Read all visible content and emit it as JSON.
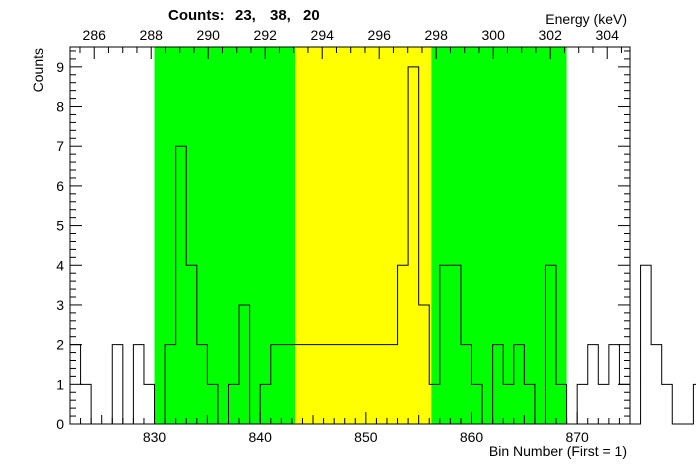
{
  "chart_data": {
    "type": "histogram",
    "title": "",
    "counts_header": {
      "label": "Counts:",
      "values": [
        "23,",
        "38,",
        "20"
      ]
    },
    "ylabel": "Counts",
    "xlabel_bottom": "Bin Number (First = 1)",
    "xlabel_top": "Energy (keV)",
    "xlim": [
      822,
      875
    ],
    "ylim": [
      0,
      9.5
    ],
    "y_ticks": [
      0,
      1,
      2,
      3,
      4,
      5,
      6,
      7,
      8,
      9
    ],
    "x_ticks_bottom": [
      830,
      840,
      850,
      860,
      870
    ],
    "x_ticks_top": [
      286,
      288,
      290,
      292,
      294,
      296,
      298,
      300,
      302,
      304
    ],
    "energy_axis": {
      "bin_a": 822,
      "energy_a": 285.15,
      "bin_b": 875,
      "energy_b": 304.8
    },
    "bin_start": 822,
    "bin_width": 1,
    "counts": [
      2,
      1,
      0,
      0,
      2,
      0,
      2,
      1,
      0,
      2,
      7,
      4,
      2,
      1,
      0,
      1,
      3,
      0,
      1,
      2,
      2,
      2,
      2,
      2,
      2,
      2,
      2,
      2,
      2,
      2,
      2,
      4,
      9,
      3,
      1,
      4,
      4,
      2,
      1,
      0,
      2,
      1,
      2,
      1,
      0,
      4,
      1,
      0,
      1,
      2,
      1,
      2,
      1,
      0,
      4,
      2,
      1,
      0,
      0,
      1,
      0,
      1,
      1,
      2,
      2,
      0,
      1,
      0,
      0,
      0,
      0,
      0,
      0
    ],
    "regions": [
      {
        "name": "left-background",
        "from": 830,
        "to": 843.3,
        "color": "#00ff00"
      },
      {
        "name": "peak",
        "from": 843.3,
        "to": 856.2,
        "color": "#ffff00"
      },
      {
        "name": "right-background",
        "from": 856.2,
        "to": 869,
        "color": "#00ff00"
      }
    ],
    "grid": false,
    "legend": "none"
  }
}
